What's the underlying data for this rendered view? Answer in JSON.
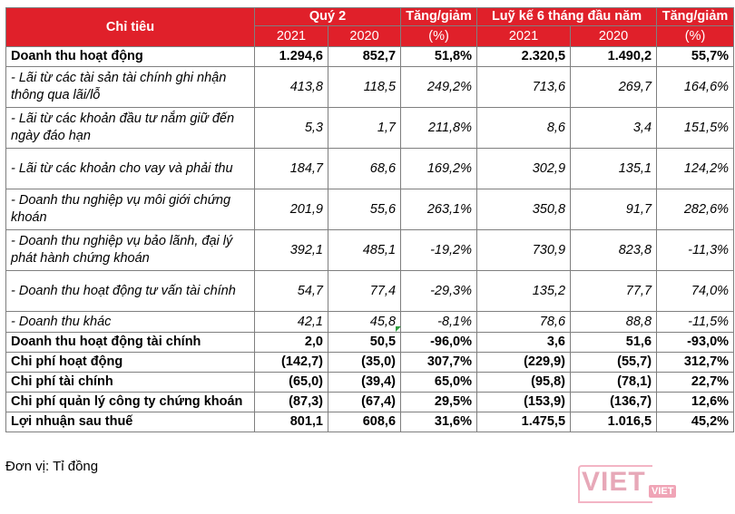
{
  "table": {
    "header": {
      "indicator": "Chỉ tiêu",
      "q2": "Quý 2",
      "change": "Tăng/giảm",
      "ytd": "Luỹ kế 6 tháng đầu năm",
      "change2": "Tăng/giảm",
      "y2021": "2021",
      "y2020": "2020",
      "pct": "(%)",
      "y2021b": "2021",
      "y2020b": "2020",
      "pct2": "(%)"
    },
    "rows": [
      {
        "label": "Doanh thu hoạt động",
        "q2_2021": "1.294,6",
        "q2_2020": "852,7",
        "q2_change": "51,8%",
        "ytd_2021": "2.320,5",
        "ytd_2020": "1.490,2",
        "ytd_change": "55,7%"
      },
      {
        "label": "- Lãi từ các tài sản tài chính ghi nhận thông qua lãi/lỗ",
        "q2_2021": "413,8",
        "q2_2020": "118,5",
        "q2_change": "249,2%",
        "ytd_2021": "713,6",
        "ytd_2020": "269,7",
        "ytd_change": "164,6%"
      },
      {
        "label": "- Lãi từ các khoản đầu tư nắm giữ đến ngày đáo hạn",
        "q2_2021": "5,3",
        "q2_2020": "1,7",
        "q2_change": "211,8%",
        "ytd_2021": "8,6",
        "ytd_2020": "3,4",
        "ytd_change": "151,5%"
      },
      {
        "label": "- Lãi từ các khoản cho vay và phải thu",
        "q2_2021": "184,7",
        "q2_2020": "68,6",
        "q2_change": "169,2%",
        "ytd_2021": "302,9",
        "ytd_2020": "135,1",
        "ytd_change": "124,2%"
      },
      {
        "label": "- Doanh thu nghiệp vụ môi giới chứng khoán",
        "q2_2021": "201,9",
        "q2_2020": "55,6",
        "q2_change": "263,1%",
        "ytd_2021": "350,8",
        "ytd_2020": "91,7",
        "ytd_change": "282,6%"
      },
      {
        "label": "- Doanh thu nghiệp vụ bảo lãnh, đại lý phát hành chứng khoán",
        "q2_2021": "392,1",
        "q2_2020": "485,1",
        "q2_change": "-19,2%",
        "ytd_2021": "730,9",
        "ytd_2020": "823,8",
        "ytd_change": "-11,3%"
      },
      {
        "label": "- Doanh thu hoạt động tư vấn tài chính",
        "q2_2021": "54,7",
        "q2_2020": "77,4",
        "q2_change": "-29,3%",
        "ytd_2021": "135,2",
        "ytd_2020": "77,7",
        "ytd_change": "74,0%"
      },
      {
        "label": "- Doanh thu khác",
        "q2_2021": "42,1",
        "q2_2020": "45,8",
        "q2_change": "-8,1%",
        "ytd_2021": "78,6",
        "ytd_2020": "88,8",
        "ytd_change": "-11,5%"
      },
      {
        "label": "Doanh thu hoạt động tài chính",
        "q2_2021": "2,0",
        "q2_2020": "50,5",
        "q2_change": "-96,0%",
        "ytd_2021": "3,6",
        "ytd_2020": "51,6",
        "ytd_change": "-93,0%"
      },
      {
        "label": "Chi phí hoạt động",
        "q2_2021": "(142,7)",
        "q2_2020": "(35,0)",
        "q2_change": "307,7%",
        "ytd_2021": "(229,9)",
        "ytd_2020": "(55,7)",
        "ytd_change": "312,7%"
      },
      {
        "label": "Chi phí tài chính",
        "q2_2021": "(65,0)",
        "q2_2020": "(39,4)",
        "q2_change": "65,0%",
        "ytd_2021": "(95,8)",
        "ytd_2020": "(78,1)",
        "ytd_change": "22,7%"
      },
      {
        "label": "Chi phí quản lý công ty chứng khoán",
        "q2_2021": "(87,3)",
        "q2_2020": "(67,4)",
        "q2_change": "29,5%",
        "ytd_2021": "(153,9)",
        "ytd_2020": "(136,7)",
        "ytd_change": "12,6%"
      },
      {
        "label": "Lợi nhuận sau thuế",
        "q2_2021": "801,1",
        "q2_2020": "608,6",
        "q2_change": "31,6%",
        "ytd_2021": "1.475,5",
        "ytd_2020": "1.016,5",
        "ytd_change": "45,2%"
      }
    ]
  },
  "unit_note": "Đơn vị: Tỉ đồng",
  "watermark": {
    "main": "VIET",
    "tag": "VIET"
  },
  "colors": {
    "header_bg": "#e0202a",
    "header_text": "#ffffff",
    "border": "#7f7f7f"
  }
}
